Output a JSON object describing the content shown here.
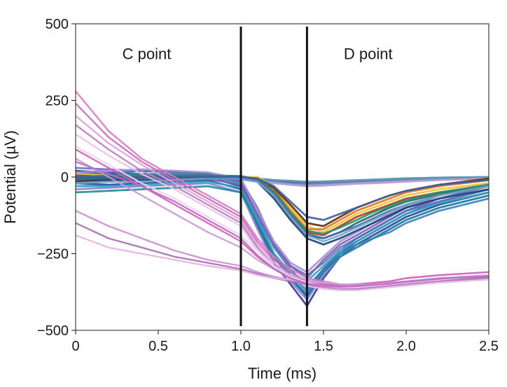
{
  "chart_data": {
    "type": "line",
    "xlabel": "Time (ms)",
    "ylabel": "Potential (µV)",
    "xlim": [
      0,
      2.5
    ],
    "ylim": [
      -500,
      500
    ],
    "xticks": [
      0,
      0.5,
      1.0,
      1.5,
      2.0,
      2.5
    ],
    "xtick_labels": [
      "0",
      "0.5",
      "1.0",
      "1.5",
      "2.0",
      "2.5"
    ],
    "yticks": [
      500,
      250,
      0,
      -250,
      -500
    ],
    "ytick_labels": [
      "500",
      "250",
      "0",
      "−250",
      "−500"
    ],
    "grid": false,
    "legend": "none",
    "vlines": [
      1.0,
      1.4
    ],
    "annotations": [
      {
        "text": "C point",
        "x": 0.43,
        "y": 385
      },
      {
        "text": "D point",
        "x": 1.77,
        "y": 385
      }
    ],
    "x": [
      0,
      0.2,
      0.4,
      0.6,
      0.8,
      1.0,
      1.1,
      1.2,
      1.3,
      1.4,
      1.5,
      1.6,
      1.7,
      1.8,
      1.9,
      2.0,
      2.2,
      2.5
    ],
    "series_groups": [
      {
        "group": "flat",
        "colors": [
          "#2c5f8a",
          "#3b5ea8",
          "#6d7ab8",
          "#8e8fc9",
          "#5d9fb0",
          "#b8a0d8"
        ],
        "series": [
          {
            "values": [
              20,
              15,
              10,
              8,
              5,
              3,
              -5,
              -10,
              -15,
              -20,
              -18,
              -15,
              -12,
              -10,
              -8,
              -5,
              -2,
              0
            ]
          },
          {
            "values": [
              -10,
              -12,
              -8,
              -5,
              -3,
              -2,
              -8,
              -12,
              -16,
              -18,
              -17,
              -15,
              -13,
              -10,
              -8,
              -6,
              -4,
              -2
            ]
          },
          {
            "values": [
              10,
              5,
              3,
              2,
              0,
              -2,
              -10,
              -15,
              -20,
              -22,
              -20,
              -18,
              -15,
              -12,
              -10,
              -8,
              -5,
              -3
            ]
          },
          {
            "values": [
              -20,
              -15,
              -10,
              -8,
              -6,
              -5,
              -12,
              -18,
              -25,
              -28,
              -26,
              -22,
              -20,
              -18,
              -15,
              -12,
              -8,
              -5
            ]
          },
          {
            "values": [
              0,
              0,
              2,
              3,
              2,
              0,
              -5,
              -10,
              -12,
              -15,
              -14,
              -12,
              -10,
              -8,
              -6,
              -4,
              -2,
              0
            ]
          },
          {
            "values": [
              -30,
              -25,
              -20,
              -15,
              -10,
              -8,
              -15,
              -20,
              -25,
              -30,
              -28,
              -25,
              -22,
              -20,
              -18,
              -15,
              -10,
              -5
            ]
          }
        ]
      },
      {
        "group": "early-dip",
        "colors": [
          "#2e3f9e",
          "#1f4fa8",
          "#3d7fbd",
          "#6f6fc2",
          "#8c7fd0",
          "#4d6cb5",
          "#2aa7b8",
          "#7b5fb6",
          "#a48ed6",
          "#1d8a9e"
        ],
        "series": [
          {
            "values": [
              20,
              10,
              5,
              5,
              0,
              -30,
              -150,
              -280,
              -350,
              -420,
              -330,
              -260,
              -220,
              -190,
              -160,
              -130,
              -90,
              -50
            ]
          },
          {
            "values": [
              -20,
              -25,
              -20,
              -15,
              -10,
              -40,
              -160,
              -260,
              -330,
              -390,
              -310,
              -250,
              -210,
              -180,
              -150,
              -120,
              -80,
              -40
            ]
          },
          {
            "values": [
              0,
              5,
              10,
              10,
              5,
              -20,
              -120,
              -230,
              -300,
              -360,
              -300,
              -250,
              -220,
              -200,
              -180,
              -150,
              -110,
              -70
            ]
          },
          {
            "values": [
              30,
              25,
              20,
              15,
              10,
              -10,
              -100,
              -220,
              -290,
              -320,
              -280,
              -230,
              -200,
              -170,
              -140,
              -110,
              -80,
              -40
            ]
          },
          {
            "values": [
              -40,
              -35,
              -30,
              -25,
              -20,
              -50,
              -170,
              -280,
              -340,
              -400,
              -320,
              -260,
              -230,
              -200,
              -170,
              -140,
              -100,
              -60
            ]
          },
          {
            "values": [
              10,
              15,
              20,
              18,
              12,
              -15,
              -130,
              -250,
              -320,
              -370,
              -300,
              -240,
              -200,
              -170,
              -140,
              -110,
              -70,
              -30
            ]
          },
          {
            "values": [
              -30,
              -30,
              -25,
              -20,
              -15,
              -35,
              -140,
              -250,
              -310,
              -340,
              -290,
              -240,
              -210,
              -180,
              -150,
              -120,
              -85,
              -50
            ]
          },
          {
            "values": [
              0,
              -5,
              -10,
              -10,
              -5,
              -25,
              -120,
              -220,
              -290,
              -330,
              -270,
              -220,
              -190,
              -160,
              -130,
              -100,
              -60,
              -20
            ]
          },
          {
            "values": [
              15,
              20,
              25,
              20,
              15,
              -5,
              -110,
              -210,
              -280,
              -310,
              -260,
              -210,
              -180,
              -150,
              -120,
              -95,
              -60,
              -25
            ]
          },
          {
            "values": [
              -50,
              -45,
              -40,
              -35,
              -30,
              -50,
              -150,
              -260,
              -330,
              -380,
              -310,
              -260,
              -230,
              -200,
              -170,
              -140,
              -100,
              -60
            ]
          }
        ]
      },
      {
        "group": "late-dip",
        "colors": [
          "#f2c12e",
          "#e2731f",
          "#b03a1a",
          "#5a2d0c",
          "#1c6b5e",
          "#2a8f6f",
          "#1d3f78",
          "#4b67b0",
          "#6fa6c8",
          "#3f5fa0"
        ],
        "series": [
          {
            "values": [
              10,
              5,
              0,
              0,
              0,
              0,
              0,
              -30,
              -100,
              -160,
              -180,
              -150,
              -120,
              -100,
              -80,
              -60,
              -40,
              -20
            ]
          },
          {
            "values": [
              0,
              0,
              -5,
              -5,
              0,
              0,
              -5,
              -40,
              -110,
              -170,
              -170,
              -140,
              -110,
              -90,
              -70,
              -50,
              -30,
              -10
            ]
          },
          {
            "values": [
              -10,
              -10,
              -5,
              -5,
              -5,
              0,
              -10,
              -50,
              -120,
              -180,
              -190,
              -160,
              -130,
              -110,
              -90,
              -70,
              -50,
              -30
            ]
          },
          {
            "values": [
              5,
              0,
              0,
              0,
              5,
              0,
              -5,
              -35,
              -90,
              -150,
              -160,
              -130,
              -100,
              -80,
              -60,
              -45,
              -25,
              -5
            ]
          },
          {
            "values": [
              -5,
              -5,
              -10,
              -5,
              0,
              -5,
              -10,
              -60,
              -130,
              -190,
              -200,
              -180,
              -150,
              -125,
              -100,
              -80,
              -55,
              -30
            ]
          },
          {
            "values": [
              0,
              5,
              5,
              5,
              5,
              0,
              -5,
              -45,
              -115,
              -175,
              -185,
              -165,
              -140,
              -115,
              -95,
              -75,
              -50,
              -25
            ]
          },
          {
            "values": [
              -15,
              -10,
              -10,
              -5,
              -5,
              -5,
              -15,
              -70,
              -140,
              -200,
              -220,
              -200,
              -175,
              -150,
              -125,
              -100,
              -70,
              -40
            ]
          },
          {
            "values": [
              5,
              0,
              -5,
              -5,
              0,
              0,
              -10,
              -55,
              -125,
              -185,
              -200,
              -180,
              -160,
              -135,
              -110,
              -90,
              -60,
              -30
            ]
          },
          {
            "values": [
              -20,
              -15,
              -15,
              -10,
              -5,
              -5,
              -15,
              -60,
              -130,
              -190,
              -210,
              -190,
              -165,
              -140,
              -115,
              -90,
              -60,
              -30
            ]
          },
          {
            "values": [
              0,
              0,
              0,
              0,
              0,
              0,
              -5,
              -30,
              -80,
              -130,
              -140,
              -120,
              -100,
              -80,
              -60,
              -45,
              -25,
              -10
            ]
          }
        ]
      },
      {
        "group": "decay",
        "colors": [
          "#d87ac8",
          "#c96bbb",
          "#e0a0d8",
          "#b87fc0",
          "#e6c3e8",
          "#cc8ed6",
          "#a66fb3",
          "#e4b4e0",
          "#d45fb6",
          "#c89ad8",
          "#f0d4ef",
          "#ba6cc4"
        ],
        "series": [
          {
            "values": [
              280,
              150,
              60,
              0,
              -60,
              -120,
              -200,
              -260,
              -300,
              -330,
              -340,
              -350,
              -355,
              -355,
              -350,
              -345,
              -335,
              -320
            ]
          },
          {
            "values": [
              240,
              130,
              50,
              -10,
              -70,
              -130,
              -210,
              -270,
              -310,
              -340,
              -350,
              -360,
              -365,
              -360,
              -355,
              -350,
              -340,
              -330
            ]
          },
          {
            "values": [
              200,
              110,
              40,
              -20,
              -80,
              -140,
              -220,
              -280,
              -320,
              -345,
              -355,
              -360,
              -360,
              -355,
              -350,
              -345,
              -335,
              -325
            ]
          },
          {
            "values": [
              170,
              90,
              20,
              -30,
              -90,
              -150,
              -230,
              -290,
              -330,
              -350,
              -360,
              -365,
              -365,
              -360,
              -355,
              -350,
              -340,
              -330
            ]
          },
          {
            "values": [
              140,
              70,
              10,
              -40,
              -100,
              -160,
              -240,
              -295,
              -335,
              -355,
              -365,
              -370,
              -370,
              -365,
              -360,
              -355,
              -345,
              -335
            ]
          },
          {
            "values": [
              -110,
              -160,
              -200,
              -240,
              -270,
              -290,
              -310,
              -325,
              -335,
              -345,
              -350,
              -355,
              -355,
              -350,
              -345,
              -340,
              -330,
              -320
            ]
          },
          {
            "values": [
              -150,
              -200,
              -230,
              -260,
              -280,
              -300,
              -315,
              -330,
              -340,
              -350,
              -355,
              -360,
              -360,
              -355,
              -350,
              -345,
              -335,
              -325
            ]
          },
          {
            "values": [
              -190,
              -230,
              -250,
              -270,
              -290,
              -305,
              -320,
              -330,
              -335,
              -340,
              -345,
              -350,
              -350,
              -345,
              -340,
              -330,
              -320,
              -310
            ]
          },
          {
            "values": [
              90,
              30,
              -30,
              -90,
              -150,
              -210,
              -260,
              -300,
              -330,
              -345,
              -350,
              -352,
              -350,
              -345,
              -340,
              -330,
              -320,
              -310
            ]
          },
          {
            "values": [
              60,
              0,
              -60,
              -120,
              -180,
              -230,
              -270,
              -300,
              -320,
              -335,
              -345,
              -350,
              -352,
              -350,
              -345,
              -340,
              -330,
              -320
            ]
          },
          {
            "values": [
              100,
              40,
              -20,
              -70,
              -130,
              -190,
              -240,
              -290,
              -325,
              -345,
              -355,
              -360,
              -360,
              -355,
              -350,
              -345,
              -335,
              -320
            ]
          },
          {
            "values": [
              50,
              10,
              -30,
              -80,
              -140,
              -200,
              -255,
              -300,
              -330,
              -348,
              -355,
              -358,
              -356,
              -352,
              -348,
              -342,
              -332,
              -322
            ]
          }
        ]
      }
    ]
  }
}
